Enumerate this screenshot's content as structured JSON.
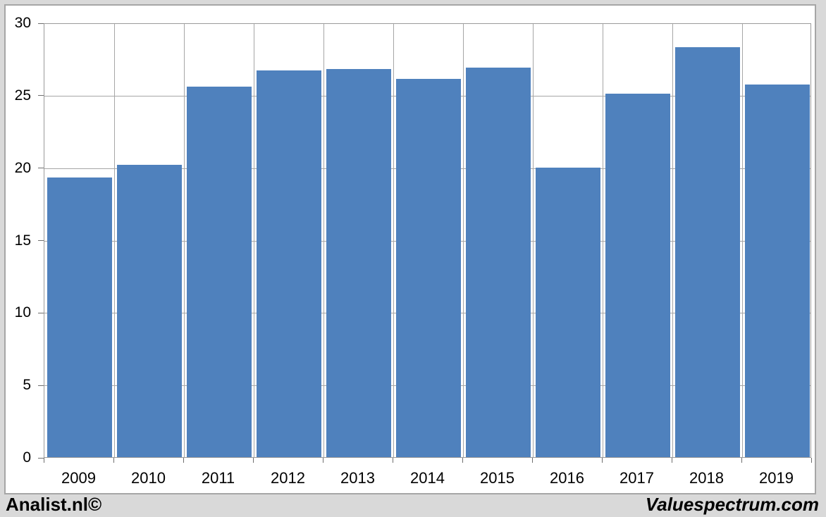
{
  "chart_data": {
    "type": "bar",
    "categories": [
      "2009",
      "2010",
      "2011",
      "2012",
      "2013",
      "2014",
      "2015",
      "2016",
      "2017",
      "2018",
      "2019"
    ],
    "values": [
      19.3,
      20.2,
      25.6,
      26.7,
      26.8,
      26.1,
      26.9,
      20.0,
      25.1,
      28.3,
      25.7
    ],
    "title": "",
    "xlabel": "",
    "ylabel": "",
    "ylim": [
      0,
      30
    ],
    "y_ticks": [
      0,
      5,
      10,
      15,
      20,
      25,
      30
    ],
    "grid": true,
    "legend_position": "none",
    "bar_color": "#4f81bd"
  },
  "colors": {
    "page_background": "#d9d9d9",
    "panel_background": "#ffffff",
    "panel_border": "#a6a6a6",
    "gridline": "#a6a6a6",
    "bar": "#4f81bd",
    "text": "#000000"
  },
  "footer": {
    "left_brand": "Analist.nl©",
    "right_brand": "Valuespectrum.com"
  }
}
